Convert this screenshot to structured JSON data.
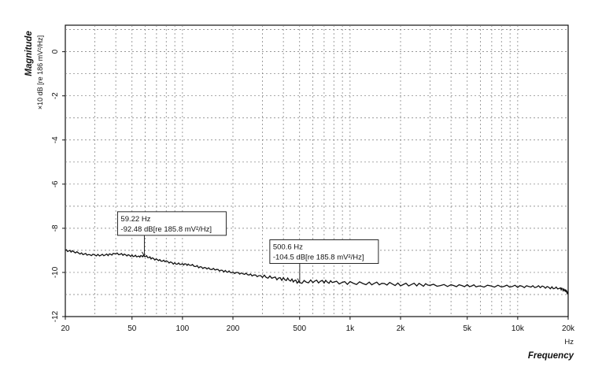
{
  "chart_data": {
    "type": "line",
    "ylabel": "Magnitude",
    "yunit": "×10 dB [re 186 mV²/Hz]",
    "xlabel": "Frequency",
    "xunit": "Hz",
    "xscale": "log",
    "xlim": [
      20,
      20000
    ],
    "ylim": [
      -12,
      1.2
    ],
    "grid": true,
    "xticks": [
      {
        "v": 20,
        "label": "20"
      },
      {
        "v": 50,
        "label": "50"
      },
      {
        "v": 100,
        "label": "100"
      },
      {
        "v": 200,
        "label": "200"
      },
      {
        "v": 500,
        "label": "500"
      },
      {
        "v": 1000,
        "label": "1k"
      },
      {
        "v": 2000,
        "label": "2k"
      },
      {
        "v": 5000,
        "label": "5k"
      },
      {
        "v": 10000,
        "label": "10k"
      },
      {
        "v": 20000,
        "label": "20k"
      }
    ],
    "yticks": [
      {
        "v": 0,
        "label": "0"
      },
      {
        "v": -2,
        "label": "-2"
      },
      {
        "v": -4,
        "label": "-4"
      },
      {
        "v": -6,
        "label": "-6"
      },
      {
        "v": -8,
        "label": "-8"
      },
      {
        "v": -10,
        "label": "-10"
      },
      {
        "v": -12,
        "label": "-12"
      }
    ],
    "series": [
      {
        "color": "#111111",
        "x": [
          20,
          22,
          25,
          28,
          32,
          36,
          40,
          45,
          50,
          55,
          59.22,
          65,
          72,
          80,
          90,
          100,
          110,
          125,
          140,
          160,
          180,
          200,
          230,
          260,
          300,
          350,
          400,
          450,
          500.6,
          600,
          700,
          800,
          1000,
          1300,
          1600,
          2000,
          2500,
          3000,
          4000,
          5000,
          6000,
          8000,
          10000,
          12000,
          14000,
          16000,
          18000,
          19000,
          19500,
          20000
        ],
        "y": [
          -9.0,
          -9.05,
          -9.15,
          -9.2,
          -9.22,
          -9.2,
          -9.15,
          -9.2,
          -9.25,
          -9.27,
          -9.248,
          -9.35,
          -9.45,
          -9.5,
          -9.6,
          -9.62,
          -9.65,
          -9.75,
          -9.82,
          -9.88,
          -9.95,
          -10.0,
          -10.05,
          -10.12,
          -10.18,
          -10.25,
          -10.3,
          -10.35,
          -10.45,
          -10.4,
          -10.42,
          -10.45,
          -10.48,
          -10.5,
          -10.5,
          -10.55,
          -10.55,
          -10.58,
          -10.6,
          -10.6,
          -10.62,
          -10.62,
          -10.63,
          -10.65,
          -10.65,
          -10.7,
          -10.72,
          -10.8,
          -10.85,
          -11.0
        ]
      }
    ],
    "annotations": [
      {
        "x": 59.22,
        "y": -9.248,
        "line1": "59.22 Hz",
        "line2": "-92.48 dB[re 185.8 mV²/Hz]"
      },
      {
        "x": 500.6,
        "y": -10.45,
        "line1": "500.6 Hz",
        "line2": "-104.5 dB[re 185.8 mV²/Hz]"
      }
    ]
  }
}
